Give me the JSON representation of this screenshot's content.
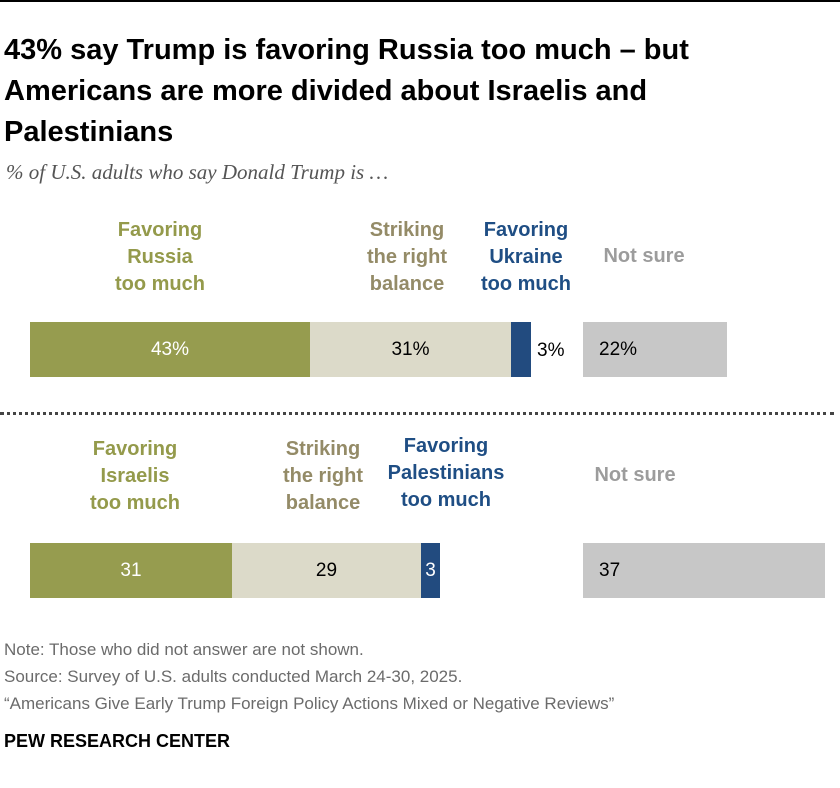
{
  "header": {
    "title": "43% say Trump is favoring Russia too much – but Americans are more divided about Israelis and Palestinians",
    "subtitle": "% of U.S. adults who say Donald Trump is …"
  },
  "colors": {
    "favoring_first": "#969c4f",
    "balance": "#dcdac9",
    "favoring_second": "#224b7f",
    "not_sure": "#c7c7c7"
  },
  "labels": {
    "russia": [
      "Favoring",
      "Russia",
      "too much"
    ],
    "balance": [
      "Striking",
      "the right",
      "balance"
    ],
    "ukraine": [
      "Favoring",
      "Ukraine",
      "too much"
    ],
    "israelis": [
      "Favoring",
      "Israelis",
      "too much"
    ],
    "palestinians": [
      "Favoring",
      "Palestinians",
      "too much"
    ],
    "not_sure": "Not sure"
  },
  "chart_data": [
    {
      "type": "bar",
      "stacked": true,
      "orientation": "horizontal",
      "series": [
        {
          "name": "Favoring Russia too much",
          "value": 43,
          "label": "43%"
        },
        {
          "name": "Striking the right balance",
          "value": 31,
          "label": "31%"
        },
        {
          "name": "Favoring Ukraine too much",
          "value": 3,
          "label": "3%"
        },
        {
          "name": "Not sure",
          "value": 22,
          "label": "22%"
        }
      ]
    },
    {
      "type": "bar",
      "stacked": true,
      "orientation": "horizontal",
      "series": [
        {
          "name": "Favoring Israelis too much",
          "value": 31,
          "label": "31"
        },
        {
          "name": "Striking the right balance",
          "value": 29,
          "label": "29"
        },
        {
          "name": "Favoring Palestinians too much",
          "value": 3,
          "label": "3"
        },
        {
          "name": "Not sure",
          "value": 37,
          "label": "37"
        }
      ]
    }
  ],
  "footer": {
    "note": "Note: Those who did not answer are not shown.",
    "source": "Source: Survey of U.S. adults conducted March 24-30, 2025.",
    "report": "“Americans Give Early Trump Foreign Policy Actions Mixed or Negative Reviews”",
    "brand": "PEW RESEARCH CENTER"
  }
}
